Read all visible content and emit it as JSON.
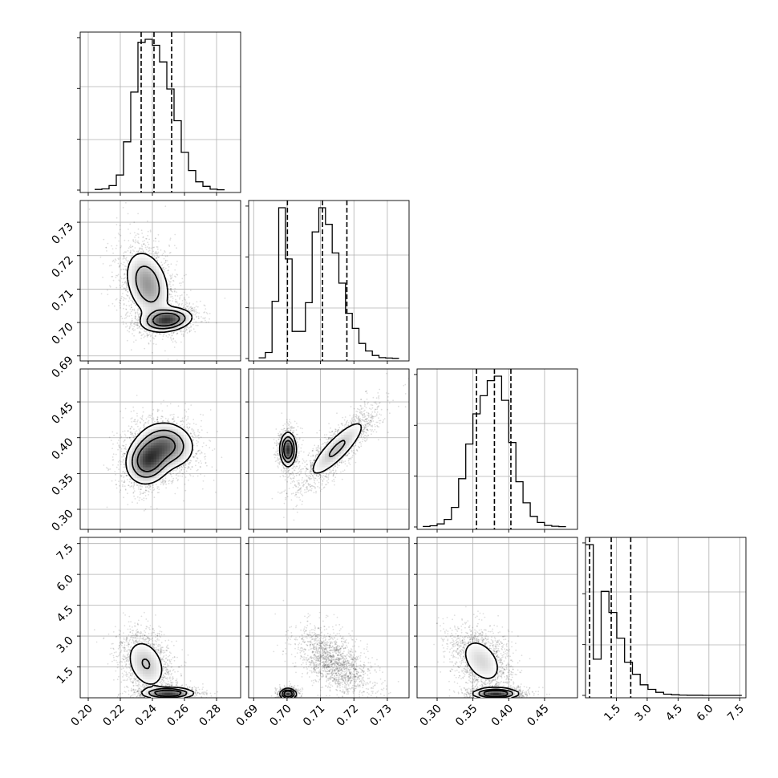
{
  "chart_data": {
    "type": "corner",
    "title": "",
    "parameters": [
      {
        "ticks": [
          "0.20",
          "0.22",
          "0.24",
          "0.26",
          "0.28"
        ],
        "tick_values": [
          0.2,
          0.22,
          0.24,
          0.26,
          0.28
        ],
        "range": [
          0.195,
          0.295
        ],
        "quantiles": [
          0.233,
          0.241,
          0.252
        ],
        "histogram": {
          "bin_edges": [
            0.204,
            0.2085,
            0.213,
            0.2175,
            0.222,
            0.2265,
            0.231,
            0.2355,
            0.24,
            0.2445,
            0.249,
            0.2535,
            0.258,
            0.2625,
            0.267,
            0.2715,
            0.276,
            0.2805,
            0.285
          ],
          "counts": [
            0.004,
            0.008,
            0.03,
            0.1,
            0.32,
            0.65,
            0.98,
            1.0,
            0.96,
            0.85,
            0.67,
            0.46,
            0.25,
            0.13,
            0.055,
            0.025,
            0.006,
            0.002
          ]
        }
      },
      {
        "ticks": [
          "0.69",
          "0.70",
          "0.71",
          "0.72",
          "0.73"
        ],
        "tick_values": [
          0.69,
          0.7,
          0.71,
          0.72,
          0.73
        ],
        "range": [
          0.6885,
          0.7365
        ],
        "quantiles": [
          0.7001,
          0.7106,
          0.7179
        ],
        "histogram": {
          "bin_edges": [
            0.6915,
            0.6935,
            0.6955,
            0.6975,
            0.6995,
            0.7015,
            0.7035,
            0.7055,
            0.7075,
            0.7095,
            0.7115,
            0.7135,
            0.7155,
            0.7175,
            0.7195,
            0.7215,
            0.7235,
            0.7255,
            0.7275,
            0.7295,
            0.7315,
            0.7335
          ],
          "counts": [
            0.005,
            0.04,
            0.38,
            1.0,
            0.66,
            0.18,
            0.18,
            0.37,
            0.84,
            1.0,
            0.89,
            0.7,
            0.5,
            0.3,
            0.2,
            0.1,
            0.05,
            0.02,
            0.006,
            0.003,
            0.001
          ]
        }
      },
      {
        "ticks": [
          "0.30",
          "0.35",
          "0.40",
          "0.45"
        ],
        "tick_values": [
          0.3,
          0.35,
          0.4,
          0.45
        ],
        "range": [
          0.272,
          0.496
        ],
        "quantiles": [
          0.355,
          0.38,
          0.403
        ],
        "histogram": {
          "bin_edges": [
            0.28,
            0.29,
            0.3,
            0.31,
            0.32,
            0.33,
            0.34,
            0.35,
            0.36,
            0.37,
            0.38,
            0.39,
            0.4,
            0.41,
            0.42,
            0.43,
            0.44,
            0.45,
            0.46,
            0.47,
            0.48
          ],
          "counts": [
            0.003,
            0.008,
            0.02,
            0.05,
            0.13,
            0.32,
            0.55,
            0.75,
            0.87,
            0.97,
            1.0,
            0.84,
            0.56,
            0.3,
            0.16,
            0.07,
            0.03,
            0.01,
            0.005,
            0.002
          ]
        }
      },
      {
        "ticks": [
          "1.5",
          "3.0",
          "4.5",
          "6.0",
          "7.5"
        ],
        "tick_values": [
          1.5,
          3.0,
          4.5,
          6.0,
          7.5
        ],
        "range": [
          0.0,
          7.8
        ],
        "quantiles": [
          0.2,
          1.25,
          2.2
        ],
        "histogram": {
          "bin_edges": [
            0.0,
            0.38,
            0.76,
            1.14,
            1.52,
            1.9,
            2.28,
            2.66,
            3.04,
            3.42,
            3.8,
            4.18,
            4.56,
            4.94,
            5.32,
            5.7,
            6.08,
            6.46,
            6.84,
            7.22,
            7.6
          ],
          "counts": [
            1.0,
            0.24,
            0.69,
            0.55,
            0.38,
            0.22,
            0.14,
            0.07,
            0.04,
            0.02,
            0.008,
            0.004,
            0.002,
            0.001,
            0.001,
            0.0,
            0.0,
            0.0,
            0.0,
            0.0
          ]
        }
      }
    ],
    "pairs": [
      {
        "x_param": 0,
        "y_param": 1,
        "modes": [
          {
            "center": [
              0.237,
              0.7115
            ],
            "sd": [
              0.0075,
              0.0055
            ],
            "corr": -0.3,
            "weight": 0.62
          },
          {
            "center": [
              0.249,
              0.7008
            ],
            "sd": [
              0.008,
              0.0018
            ],
            "corr": 0.2,
            "weight": 0.38
          }
        ]
      },
      {
        "x_param": 0,
        "y_param": 2,
        "modes": [
          {
            "center": [
              0.237,
              0.368
            ],
            "sd": [
              0.007,
              0.017
            ],
            "corr": 0.1,
            "weight": 0.5
          },
          {
            "center": [
              0.249,
              0.39
            ],
            "sd": [
              0.009,
              0.017
            ],
            "corr": -0.1,
            "weight": 0.5
          }
        ]
      },
      {
        "x_param": 1,
        "y_param": 2,
        "modes": [
          {
            "center": [
              0.7003,
              0.3835
            ],
            "sd": [
              0.0012,
              0.012
            ],
            "corr": 0.0,
            "weight": 0.38
          },
          {
            "center": [
              0.715,
              0.385
            ],
            "sd": [
              0.005,
              0.024
            ],
            "corr": 0.85,
            "weight": 0.62
          }
        ]
      },
      {
        "x_param": 0,
        "y_param": 3,
        "modes": [
          {
            "center": [
              0.236,
              1.65
            ],
            "sd": [
              0.007,
              0.7
            ],
            "corr": -0.3,
            "weight": 0.6
          },
          {
            "center": [
              0.25,
              0.22
            ],
            "sd": [
              0.008,
              0.14
            ],
            "corr": 0.0,
            "weight": 0.4
          }
        ]
      },
      {
        "x_param": 1,
        "y_param": 3,
        "modes": [
          {
            "center": [
              0.7003,
              0.18
            ],
            "sd": [
              0.0012,
              0.13
            ],
            "corr": 0.0,
            "weight": 0.38
          },
          {
            "center": [
              0.714,
              1.75
            ],
            "sd": [
              0.0045,
              0.65
            ],
            "corr": -0.55,
            "weight": 0.62
          }
        ]
      },
      {
        "x_param": 2,
        "y_param": 3,
        "modes": [
          {
            "center": [
              0.362,
              1.8
            ],
            "sd": [
              0.018,
              0.7
            ],
            "corr": -0.4,
            "weight": 0.6
          },
          {
            "center": [
              0.382,
              0.2
            ],
            "sd": [
              0.016,
              0.13
            ],
            "corr": 0.0,
            "weight": 0.4
          }
        ]
      }
    ]
  }
}
